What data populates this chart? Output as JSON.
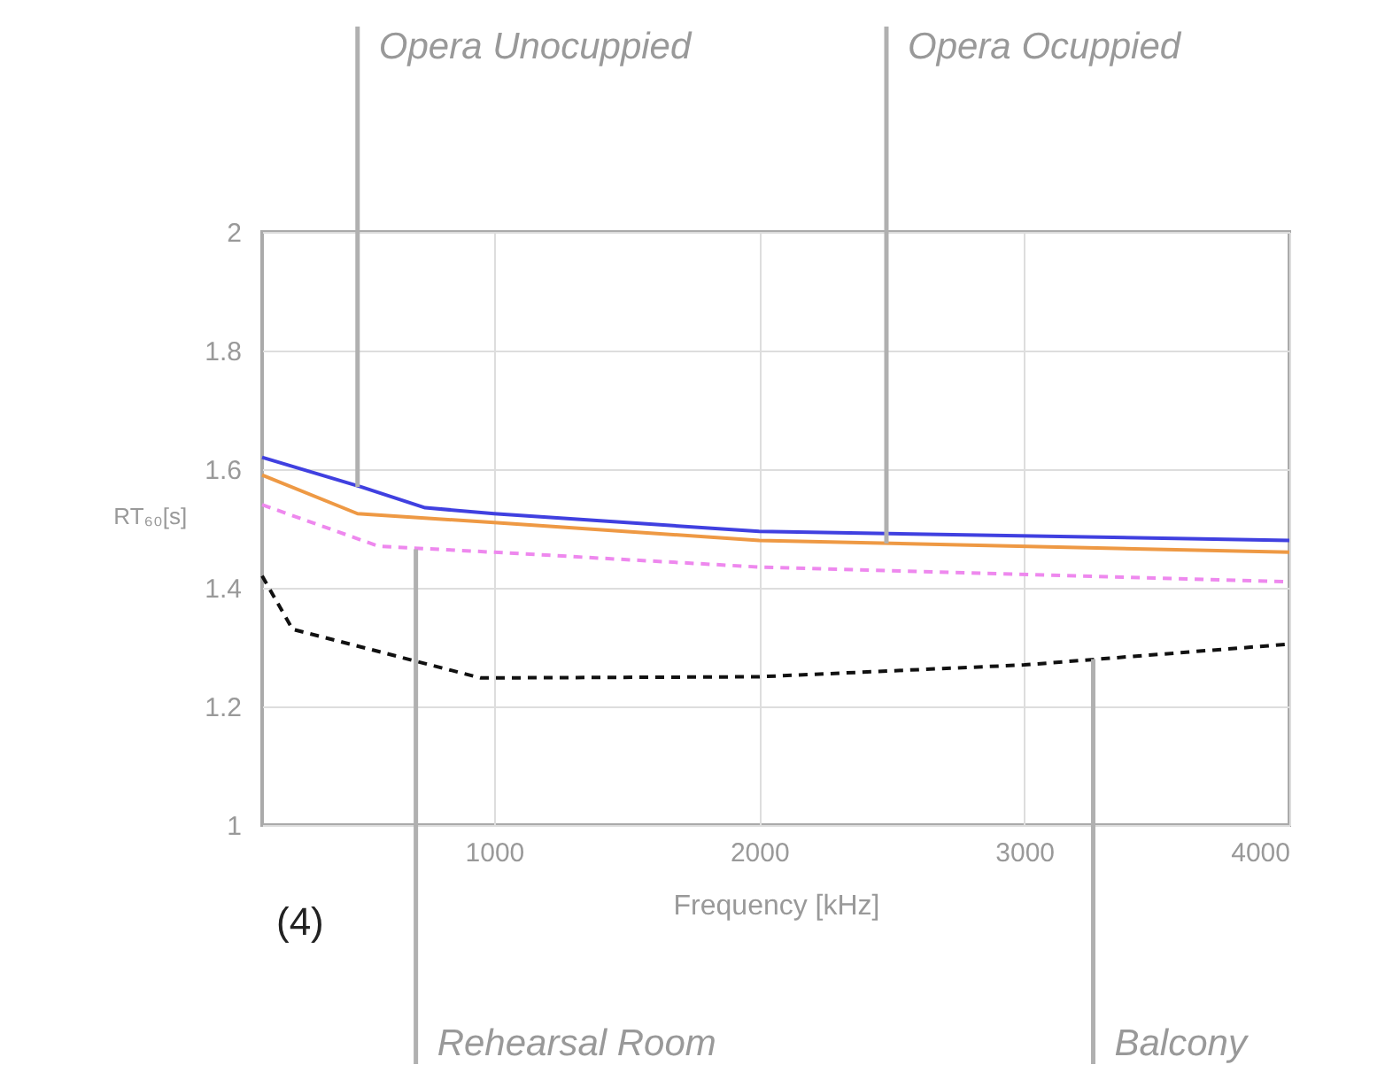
{
  "chart_data": {
    "type": "line",
    "xlabel": "Frequency [kHz]",
    "ylabel": "RT₆₀[s]",
    "xlim": [
      125,
      4000
    ],
    "xticks": [
      1000,
      2000,
      3000,
      4000
    ],
    "ylim": [
      1,
      2
    ],
    "yticks": [
      1,
      1.2,
      1.4,
      1.6,
      1.8,
      2
    ],
    "grid": true,
    "series": [
      {
        "color": "#4040e0",
        "line_style": "solid",
        "x": [
          125,
          500,
          740,
          1000,
          2000,
          4000
        ],
        "values": [
          1.62,
          1.57,
          1.535,
          1.525,
          1.495,
          1.48
        ]
      },
      {
        "color": "#ee9944",
        "line_style": "solid",
        "x": [
          125,
          485,
          1000,
          2000,
          4000
        ],
        "values": [
          1.59,
          1.525,
          1.51,
          1.48,
          1.46
        ]
      },
      {
        "color": "#ee88ee",
        "line_style": "dashed",
        "x": [
          125,
          565,
          1000,
          2000,
          4000
        ],
        "values": [
          1.54,
          1.47,
          1.46,
          1.435,
          1.41
        ]
      },
      {
        "color": "#111111",
        "line_style": "dashed",
        "x": [
          125,
          240,
          500,
          950,
          2000,
          3000,
          4000
        ],
        "values": [
          1.42,
          1.33,
          1.3,
          1.248,
          1.25,
          1.27,
          1.305
        ]
      }
    ],
    "annotations": [
      {
        "text": "Opera Unocuppied",
        "x": 485,
        "y": 1.57
      },
      {
        "text": "Opera Ocuppied",
        "x": 2480,
        "y": 1.475
      },
      {
        "text": "Rehearsal Room",
        "x": 705,
        "y": 1.465
      },
      {
        "text": "Balcony",
        "x": 3260,
        "y": 1.28
      },
      "(4)"
    ]
  }
}
